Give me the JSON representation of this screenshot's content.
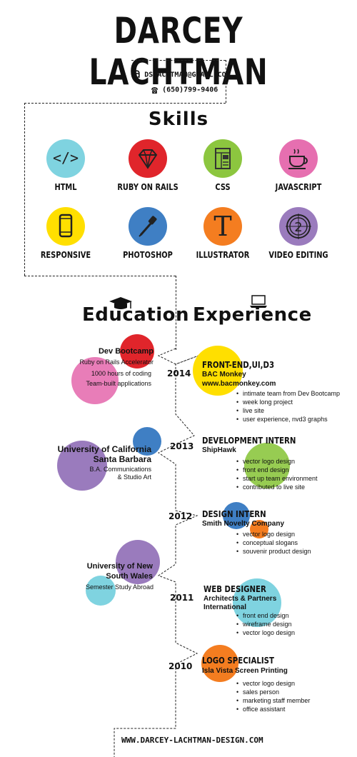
{
  "header": {
    "name": "DARCEY LACHTMAN",
    "email": "DSLACHTMAN@GMAIL.COM",
    "phone": "(650)799-9406"
  },
  "skills": {
    "title": "Skills",
    "items": [
      {
        "label": "HTML",
        "icon": "code-icon",
        "color": "#7fd3e0"
      },
      {
        "label": "RUBY ON RAILS",
        "icon": "gem-icon",
        "color": "#e0252b"
      },
      {
        "label": "CSS",
        "icon": "layout-icon",
        "color": "#8cc63f"
      },
      {
        "label": "JAVASCRIPT",
        "icon": "coffee-cup-icon",
        "color": "#e66fb0"
      },
      {
        "label": "RESPONSIVE",
        "icon": "phone-icon",
        "color": "#ffdf00"
      },
      {
        "label": "PHOTOSHOP",
        "icon": "eyedropper-icon",
        "color": "#3f7fc4"
      },
      {
        "label": "ILLUSTRATOR",
        "icon": "letter-t-icon",
        "color": "#f47d20"
      },
      {
        "label": "VIDEO EDITING",
        "icon": "film-countdown-icon",
        "color": "#9a7bbd"
      }
    ]
  },
  "education": {
    "title": "Education",
    "items": [
      {
        "name": "Dev Bootcamp",
        "lines": [
          "Ruby on Rails Accelerator",
          "1000 hours of coding",
          "Team-built applications"
        ]
      },
      {
        "name": "University of California",
        "name2": "Santa Barbara",
        "lines": [
          "B.A. Communications",
          "& Studio Art"
        ]
      },
      {
        "name": "University of New",
        "name2": "South Wales",
        "lines": [
          "Semester Study Abroad"
        ]
      }
    ]
  },
  "experience": {
    "title": "Experience",
    "items": [
      {
        "year": "2014",
        "title": "FRONT-END,UI,D3",
        "company": "BAC Monkey",
        "company2": "www.bacmonkey.com",
        "bullets": [
          "intimate team from Dev Bootcamp",
          "week long project",
          "live site",
          "user experience, nvd3 graphs"
        ]
      },
      {
        "year": "2013",
        "title": "DEVELOPMENT INTERN",
        "company": "ShipHawk",
        "bullets": [
          "vector logo design",
          "front end design",
          "start up team environment",
          "contributed to live site"
        ]
      },
      {
        "year": "2012",
        "title": "DESIGN INTERN",
        "company": "Smith Novelty Company",
        "bullets": [
          "vector logo design",
          "conceptual slogans",
          "souvenir product design"
        ]
      },
      {
        "year": "2011",
        "title": "WEB DESIGNER",
        "company": "Architects & Partners",
        "company2": "International",
        "bullets": [
          "front end design",
          "wireframe design",
          "vector logo design"
        ]
      },
      {
        "year": "2010",
        "title": "LOGO SPECIALIST",
        "company": "Isla Vista Screen Printing",
        "bullets": [
          "vector logo design",
          "sales person",
          "marketing staff member",
          "office assistant"
        ]
      }
    ]
  },
  "footer": {
    "website": "WWW.DARCEY-LACHTMAN-DESIGN.COM"
  }
}
